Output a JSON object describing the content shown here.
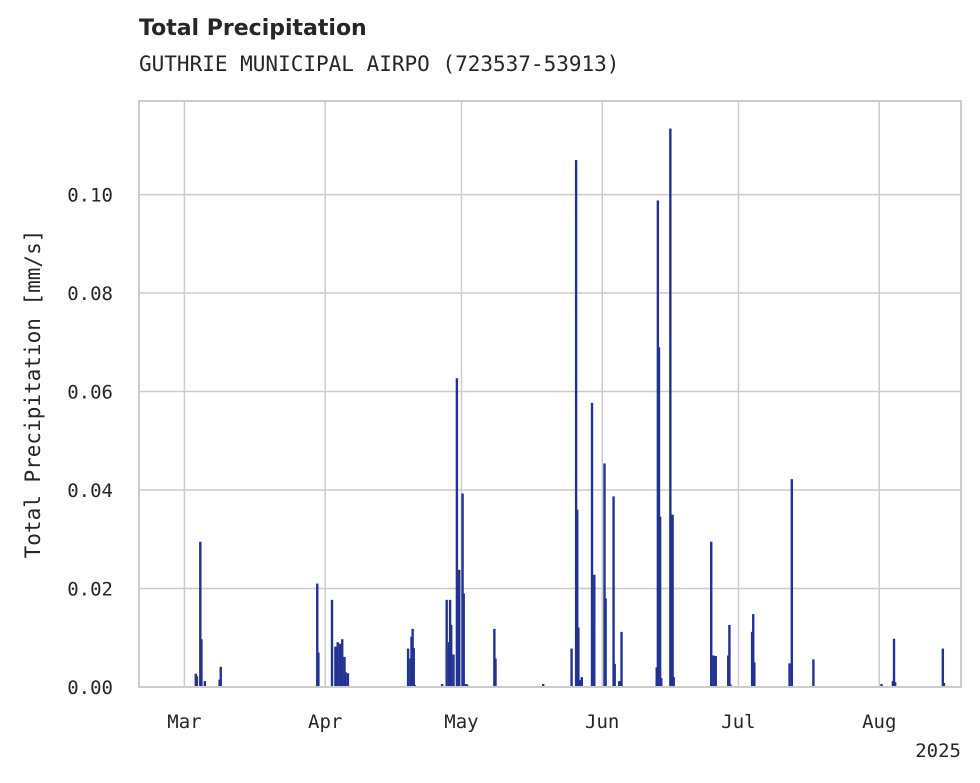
{
  "chart_data": {
    "type": "bar",
    "title": "Total Precipitation",
    "subtitle": "GUTHRIE MUNICIPAL AIRPO (723537-53913)",
    "xlabel": "",
    "ylabel": "Total Precipitation [mm/s]",
    "ylim": [
      0,
      0.119
    ],
    "xlim": [
      "2025-02-19",
      "2025-08-19"
    ],
    "grid": true,
    "x_ticks": [
      {
        "date": "2025-03-01",
        "label": "Mar"
      },
      {
        "date": "2025-04-01",
        "label": "Apr"
      },
      {
        "date": "2025-05-01",
        "label": "May"
      },
      {
        "date": "2025-06-01",
        "label": "Jun"
      },
      {
        "date": "2025-07-01",
        "label": "Jul"
      },
      {
        "date": "2025-08-01",
        "label": "Aug"
      }
    ],
    "x_offset_label": "2025",
    "y_ticks": [
      {
        "value": 0.0,
        "label": "0.00"
      },
      {
        "value": 0.02,
        "label": "0.02"
      },
      {
        "value": 0.04,
        "label": "0.04"
      },
      {
        "value": 0.06,
        "label": "0.06"
      },
      {
        "value": 0.08,
        "label": "0.08"
      },
      {
        "value": 0.1,
        "label": "0.10"
      }
    ],
    "color": "#233293",
    "x": [
      "2025-03-03T12:00",
      "2025-03-03T18:00",
      "2025-03-04T12:00",
      "2025-03-04T18:00",
      "2025-03-05T12:00",
      "2025-03-08T18:00",
      "2025-03-09T00:00",
      "2025-03-30T06:00",
      "2025-03-30T12:00",
      "2025-04-02T12:00",
      "2025-04-03T06:00",
      "2025-04-03T18:00",
      "2025-04-04T06:00",
      "2025-04-04T18:00",
      "2025-04-05T06:00",
      "2025-04-05T12:00",
      "2025-04-06T00:00",
      "2025-04-19T06:00",
      "2025-04-19T18:00",
      "2025-04-20T00:00",
      "2025-04-20T06:00",
      "2025-04-20T12:00",
      "2025-04-20T18:00",
      "2025-04-26T18:00",
      "2025-04-27T18:00",
      "2025-04-28T06:00",
      "2025-04-28T12:00",
      "2025-04-28T18:00",
      "2025-04-29T00:00",
      "2025-04-29T06:00",
      "2025-04-30T00:00",
      "2025-04-30T06:00",
      "2025-04-30T12:00",
      "2025-05-01T06:00",
      "2025-05-01T12:00",
      "2025-05-02T00:00",
      "2025-05-02T06:00",
      "2025-05-08T06:00",
      "2025-05-08T12:00",
      "2025-05-19T00:00",
      "2025-05-25T06:00",
      "2025-05-26T06:00",
      "2025-05-26T12:00",
      "2025-05-26T18:00",
      "2025-05-27T06:00",
      "2025-05-27T12:00",
      "2025-05-29T18:00",
      "2025-05-30T00:00",
      "2025-05-30T06:00",
      "2025-06-01T12:00",
      "2025-06-01T18:00",
      "2025-06-03T12:00",
      "2025-06-03T18:00",
      "2025-06-04T18:00",
      "2025-06-05T06:00",
      "2025-06-13T00:00",
      "2025-06-13T06:00",
      "2025-06-13T12:00",
      "2025-06-13T18:00",
      "2025-06-14T00:00",
      "2025-06-16T00:00",
      "2025-06-16T06:00",
      "2025-06-16T12:00",
      "2025-06-16T18:00",
      "2025-06-25T00:00",
      "2025-06-25T12:00",
      "2025-06-26T00:00",
      "2025-06-28T18:00",
      "2025-06-29T00:00",
      "2025-06-29T06:00",
      "2025-07-04T00:00",
      "2025-07-04T06:00",
      "2025-07-04T12:00",
      "2025-07-12T06:00",
      "2025-07-12T18:00",
      "2025-07-17T12:00",
      "2025-08-01T12:00",
      "2025-08-04T00:00",
      "2025-08-04T06:00",
      "2025-08-04T12:00",
      "2025-08-15T00:00",
      "2025-08-15T06:00"
    ],
    "values": [
      0.0027,
      0.0022,
      0.0295,
      0.0097,
      0.0012,
      0.0015,
      0.0041,
      0.021,
      0.007,
      0.0177,
      0.0082,
      0.0091,
      0.0088,
      0.0097,
      0.0061,
      0.003,
      0.0028,
      0.0078,
      0.0058,
      0.0102,
      0.0118,
      0.0079,
      0.0004,
      0.0006,
      0.0177,
      0.0091,
      0.0177,
      0.0126,
      0.0005,
      0.0066,
      0.0627,
      0.018,
      0.0238,
      0.0393,
      0.019,
      0.0006,
      0.0005,
      0.0118,
      0.0058,
      0.0006,
      0.0078,
      0.107,
      0.036,
      0.0121,
      0.0014,
      0.002,
      0.0577,
      0.012,
      0.0228,
      0.0454,
      0.018,
      0.0387,
      0.0047,
      0.0012,
      0.0112,
      0.004,
      0.0988,
      0.069,
      0.0346,
      0.0018,
      0.1134,
      0.01,
      0.035,
      0.002,
      0.0295,
      0.0064,
      0.0063,
      0.0064,
      0.0126,
      0.0005,
      0.0112,
      0.0148,
      0.005,
      0.0048,
      0.0422,
      0.0056,
      0.0006,
      0.0012,
      0.0098,
      0.001,
      0.0078,
      0.0008
    ]
  }
}
